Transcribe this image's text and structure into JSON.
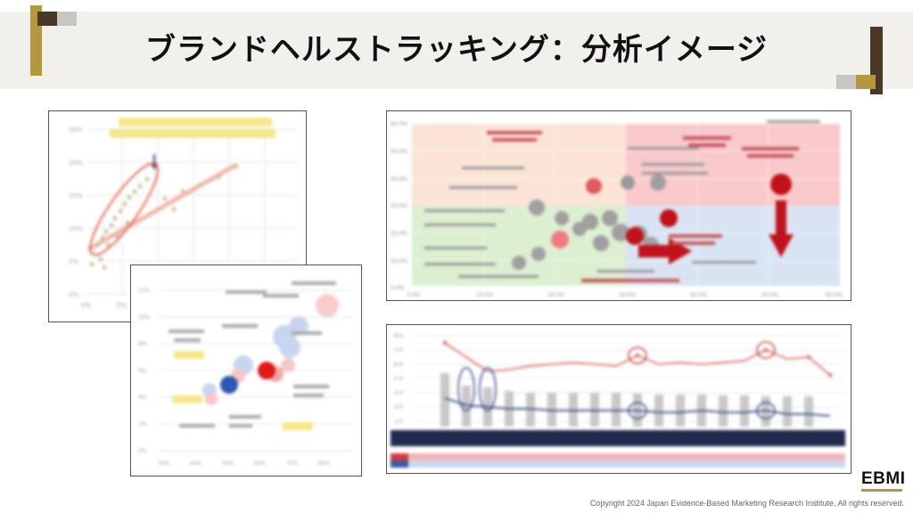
{
  "title": "ブランドヘルストラッキング：分析イメージ",
  "footer": "Copyright 2024 Japan Evidence-Based Marketing Research Institute, All rights reserved.",
  "logo": "EBMI",
  "colors": {
    "gold": "#b5973d",
    "dark_brown": "#4a3a24",
    "grey": "#c9c6c1",
    "band": "#f2f0ed",
    "red": "#e0303a",
    "blue": "#2f5fb8"
  }
}
